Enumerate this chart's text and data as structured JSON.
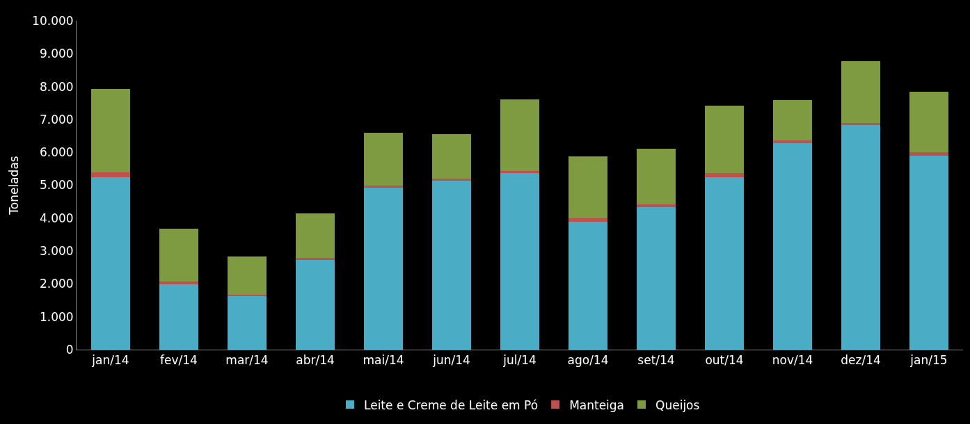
{
  "chart_data": {
    "type": "bar",
    "stacked": true,
    "ylabel": "Toneladas",
    "categories": [
      "jan/14",
      "fev/14",
      "mar/14",
      "abr/14",
      "mai/14",
      "jun/14",
      "jul/14",
      "ago/14",
      "set/14",
      "out/14",
      "nov/14",
      "dez/14",
      "jan/15"
    ],
    "series": [
      {
        "name": "Leite e Creme de Leite em Pó",
        "color": "#4bacc6",
        "values": [
          5250,
          1980,
          1640,
          2720,
          4920,
          5130,
          5380,
          3880,
          4330,
          5250,
          6280,
          6830,
          5900
        ]
      },
      {
        "name": "Manteiga",
        "color": "#c0504d",
        "values": [
          150,
          100,
          40,
          80,
          70,
          80,
          50,
          110,
          90,
          110,
          80,
          70,
          100
        ]
      },
      {
        "name": "Queijos",
        "color": "#7f9b42",
        "values": [
          2530,
          1600,
          1160,
          1350,
          1610,
          1340,
          2190,
          1880,
          1680,
          2070,
          1240,
          1880,
          1840
        ]
      }
    ],
    "ylim": [
      0,
      10000
    ],
    "yticks": [
      0,
      {
        "value": 1000,
        "label": "1.000"
      },
      {
        "value": 2000,
        "label": "2.000"
      },
      {
        "value": 3000,
        "label": "3.000"
      },
      {
        "value": 4000,
        "label": "4.000"
      },
      {
        "value": 5000,
        "label": "5.000"
      },
      {
        "value": 6000,
        "label": "6.000"
      },
      {
        "value": 7000,
        "label": "7.000"
      },
      {
        "value": 8000,
        "label": "8.000"
      },
      {
        "value": 9000,
        "label": "9.000"
      },
      {
        "value": 10000,
        "label": "10.000"
      }
    ],
    "grid": false,
    "legend": "bottom"
  }
}
